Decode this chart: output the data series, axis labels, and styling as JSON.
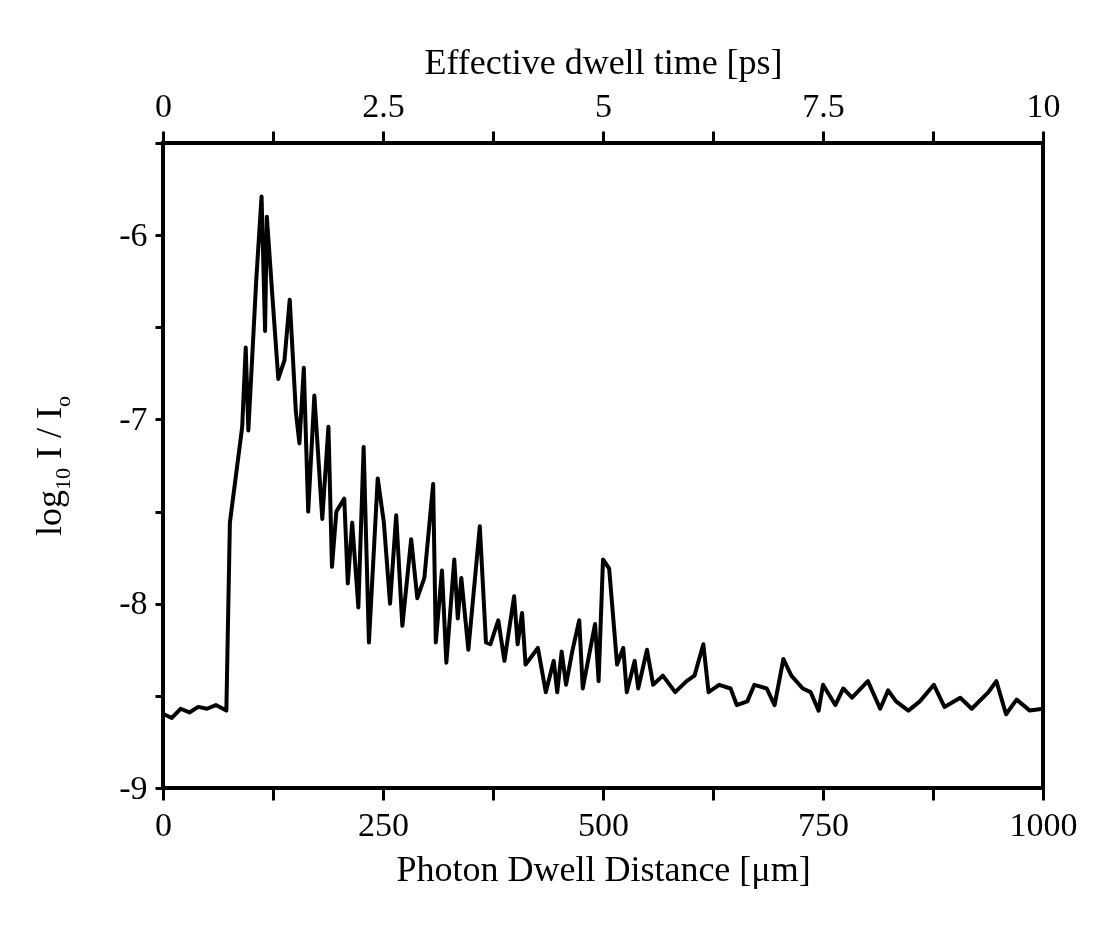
{
  "chart_data": {
    "type": "line",
    "xlabel": "Photon Dwell Distance [μm]",
    "x2label": "Effective dwell time [ps]",
    "ylabel": "log$_{10}$ I / I$_{o}$",
    "xlim": [
      0,
      1000
    ],
    "xticks": [
      0,
      {
        "value": 125,
        "label": null
      },
      250,
      {
        "value": 375,
        "label": null
      },
      500,
      {
        "value": 625,
        "label": null
      },
      750,
      {
        "value": 875,
        "label": null
      },
      1000
    ],
    "x2lim": [
      0,
      10
    ],
    "x2ticks": [
      0,
      {
        "value": 1.25,
        "label": null
      },
      2.5,
      {
        "value": 3.75,
        "label": null
      },
      5,
      {
        "value": 6.25,
        "label": null
      },
      7.5,
      {
        "value": 8.75,
        "label": null
      },
      10
    ],
    "ylim": [
      -9,
      -5.5
    ],
    "yticks": [
      -9,
      {
        "value": -8.5,
        "label": null
      },
      -8,
      {
        "value": -7.5,
        "label": null
      },
      -7,
      {
        "value": -6.5,
        "label": null
      },
      -6,
      {
        "value": -5.5,
        "label": null
      }
    ],
    "line_style": "solid",
    "marker": "none",
    "series": [
      {
        "color": "#000000",
        "x": [
          1,
          10,
          20,
          30,
          40,
          50,
          60,
          72,
          76,
          90,
          94,
          97,
          106,
          112,
          116,
          118,
          124,
          131,
          138,
          144,
          151,
          155,
          160,
          165,
          172,
          181,
          188,
          192,
          197,
          206,
          210,
          215,
          222,
          228,
          234,
          244,
          251,
          258,
          265,
          272,
          282,
          289,
          297,
          307,
          310,
          317,
          322,
          331,
          335,
          339,
          347,
          360,
          367,
          372,
          381,
          388,
          399,
          403,
          408,
          412,
          426,
          435,
          444,
          448,
          453,
          458,
          465,
          473,
          477,
          491,
          495,
          500,
          507,
          516,
          523,
          527,
          536,
          540,
          550,
          557,
          568,
          582,
          595,
          604,
          614,
          620,
          632,
          645,
          652,
          664,
          672,
          686,
          695,
          705,
          714,
          727,
          736,
          745,
          750,
          764,
          773,
          783,
          801,
          815,
          824,
          833,
          847,
          860,
          876,
          888,
          906,
          919,
          938,
          947,
          958,
          970,
          985,
          1000
        ],
        "values": [
          -8.6,
          -8.62,
          -8.57,
          -8.59,
          -8.56,
          -8.57,
          -8.55,
          -8.58,
          -7.56,
          -7.04,
          -6.61,
          -7.06,
          -6.24,
          -5.79,
          -6.52,
          -5.9,
          -6.31,
          -6.78,
          -6.68,
          -6.35,
          -6.96,
          -7.13,
          -6.72,
          -7.5,
          -6.87,
          -7.54,
          -7.04,
          -7.8,
          -7.5,
          -7.43,
          -7.89,
          -7.56,
          -8.02,
          -7.15,
          -8.21,
          -7.32,
          -7.56,
          -8.0,
          -7.52,
          -8.12,
          -7.65,
          -7.97,
          -7.86,
          -7.35,
          -8.21,
          -7.82,
          -8.32,
          -7.76,
          -8.08,
          -7.86,
          -8.25,
          -7.58,
          -8.21,
          -8.22,
          -8.09,
          -8.31,
          -7.96,
          -8.22,
          -8.05,
          -8.33,
          -8.24,
          -8.48,
          -8.31,
          -8.48,
          -8.26,
          -8.44,
          -8.26,
          -8.09,
          -8.46,
          -8.11,
          -8.42,
          -7.76,
          -7.81,
          -8.33,
          -8.24,
          -8.48,
          -8.31,
          -8.46,
          -8.25,
          -8.44,
          -8.39,
          -8.48,
          -8.42,
          -8.39,
          -8.22,
          -8.48,
          -8.44,
          -8.46,
          -8.55,
          -8.53,
          -8.44,
          -8.46,
          -8.55,
          -8.3,
          -8.39,
          -8.46,
          -8.48,
          -8.58,
          -8.44,
          -8.55,
          -8.46,
          -8.51,
          -8.42,
          -8.57,
          -8.47,
          -8.53,
          -8.58,
          -8.53,
          -8.44,
          -8.56,
          -8.51,
          -8.57,
          -8.48,
          -8.42,
          -8.6,
          -8.52,
          -8.58,
          -8.57
        ]
      }
    ]
  }
}
